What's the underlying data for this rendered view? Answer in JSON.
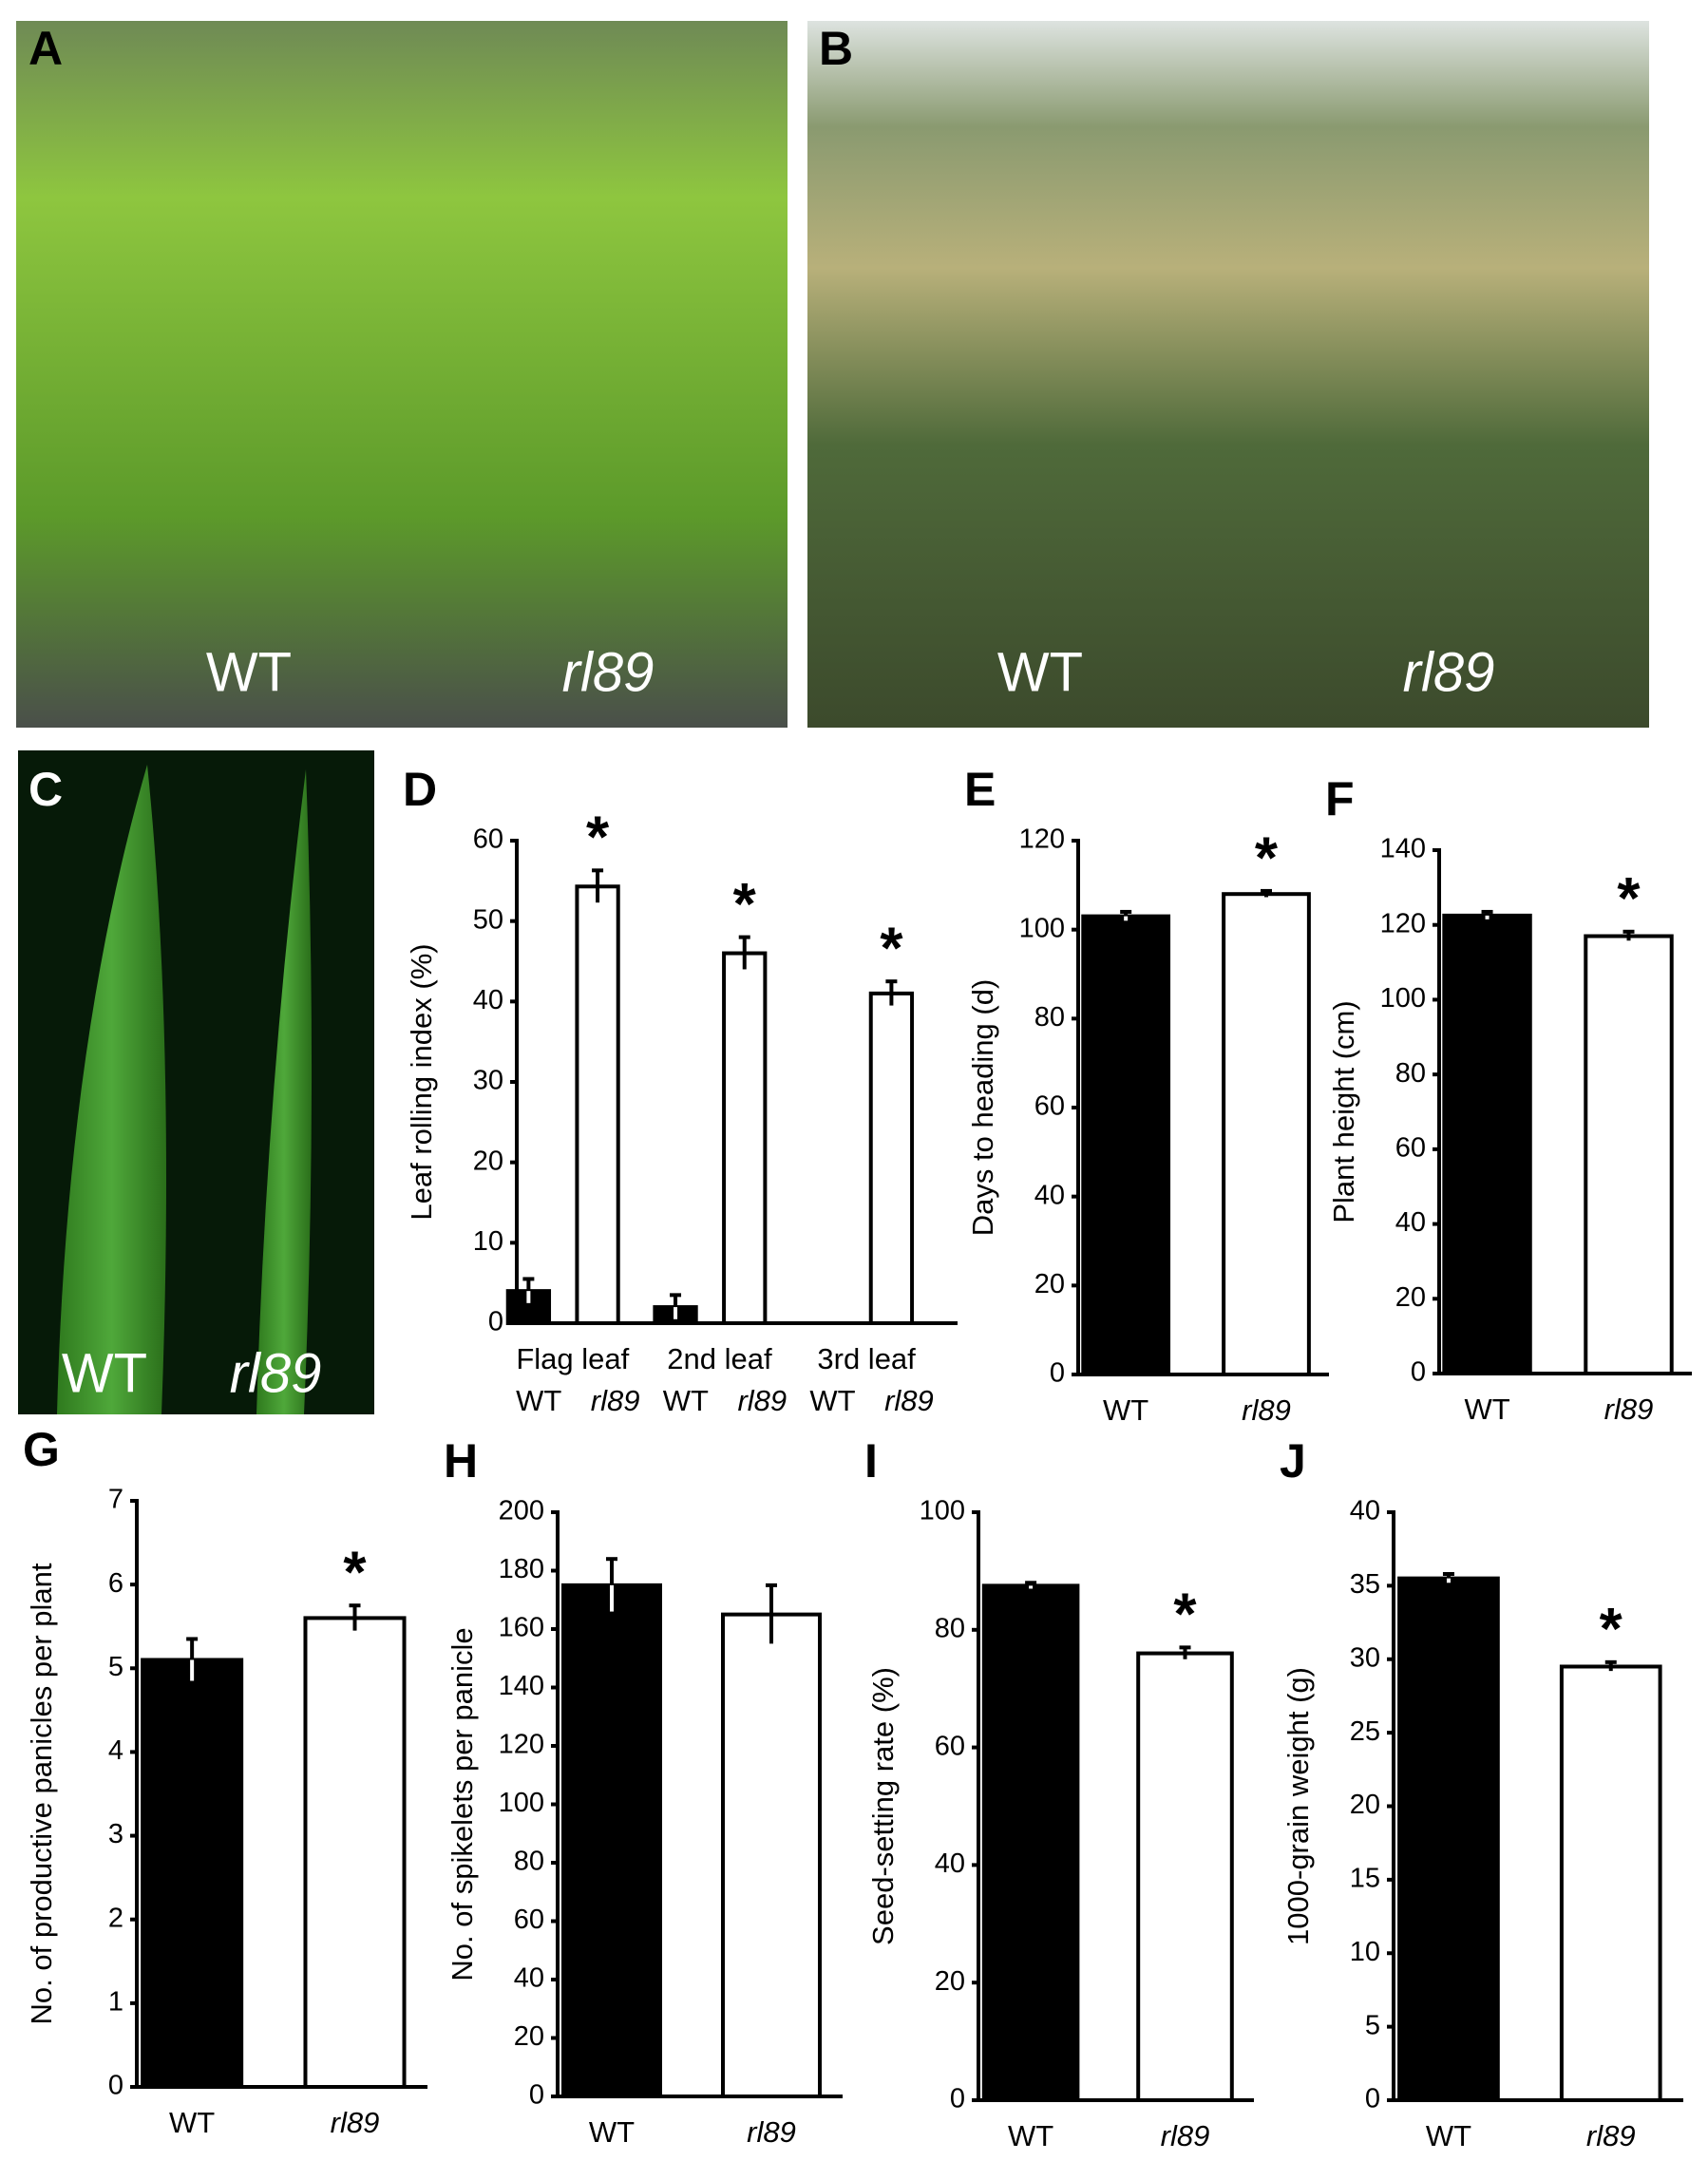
{
  "photos": [
    {
      "letter": "A",
      "labels": [
        "WT",
        "rl89"
      ]
    },
    {
      "letter": "B",
      "labels": [
        "WT",
        "rl89"
      ]
    },
    {
      "letter": "C",
      "labels": [
        "WT",
        "rl89"
      ]
    }
  ],
  "chart_data": [
    {
      "type": "grouped-bar",
      "letter": "D",
      "ylabel": "Leaf rolling index (%)",
      "categories": [
        "Flag leaf",
        "2nd leaf",
        "3rd leaf"
      ],
      "series": [
        {
          "name": "WT",
          "color": "#000000",
          "values": [
            4,
            2,
            0
          ],
          "errors": [
            1.5,
            1.5,
            0
          ]
        },
        {
          "name": "rl89",
          "color": "#ffffff",
          "values": [
            54.3,
            46,
            41
          ],
          "errors": [
            2,
            2,
            1.5
          ],
          "marks": [
            "*",
            "*",
            "*"
          ]
        }
      ],
      "ylim": [
        0,
        60
      ],
      "yticks": [
        0,
        10,
        20,
        30,
        40,
        50,
        60
      ]
    },
    {
      "type": "bar",
      "letter": "E",
      "ylabel": "Days to heading (d)",
      "categories": [
        "WT",
        "rl89"
      ],
      "colors": [
        "#000000",
        "#ffffff"
      ],
      "values": [
        103,
        108
      ],
      "errors": [
        1,
        0.7
      ],
      "annotations": [
        {
          "index": 1,
          "text": "*"
        }
      ],
      "ylim": [
        0,
        120
      ],
      "yticks": [
        0,
        20,
        40,
        60,
        80,
        100,
        120
      ]
    },
    {
      "type": "bar",
      "letter": "F",
      "ylabel": "Plant height (cm)",
      "categories": [
        "WT",
        "rl89"
      ],
      "colors": [
        "#000000",
        "#ffffff"
      ],
      "values": [
        122.5,
        117
      ],
      "errors": [
        1,
        1.2
      ],
      "annotations": [
        {
          "index": 1,
          "text": "*"
        }
      ],
      "ylim": [
        0,
        140
      ],
      "yticks": [
        0,
        20,
        40,
        60,
        80,
        100,
        120,
        140
      ]
    },
    {
      "type": "bar",
      "letter": "G",
      "ylabel": "No. of productive panicles per plant",
      "categories": [
        "WT",
        "rl89"
      ],
      "colors": [
        "#000000",
        "#ffffff"
      ],
      "values": [
        5.1,
        5.6
      ],
      "errors": [
        0.25,
        0.15
      ],
      "annotations": [
        {
          "index": 1,
          "text": "*"
        }
      ],
      "ylim": [
        0,
        7
      ],
      "yticks": [
        0,
        1,
        2,
        3,
        4,
        5,
        6,
        7
      ]
    },
    {
      "type": "bar",
      "letter": "H",
      "ylabel": "No. of spikelets per panicle",
      "categories": [
        "WT",
        "rl89"
      ],
      "colors": [
        "#000000",
        "#ffffff"
      ],
      "values": [
        175,
        165
      ],
      "errors": [
        9,
        10
      ],
      "ylim": [
        0,
        200
      ],
      "yticks": [
        0,
        20,
        40,
        60,
        80,
        100,
        120,
        140,
        160,
        180,
        200
      ]
    },
    {
      "type": "bar",
      "letter": "I",
      "ylabel": "Seed-setting rate (%)",
      "categories": [
        "WT",
        "rl89"
      ],
      "colors": [
        "#000000",
        "#ffffff"
      ],
      "values": [
        87.5,
        76
      ],
      "errors": [
        0.5,
        1
      ],
      "annotations": [
        {
          "index": 1,
          "text": "*"
        }
      ],
      "ylim": [
        0,
        100
      ],
      "yticks": [
        0,
        20,
        40,
        60,
        80,
        100
      ]
    },
    {
      "type": "bar",
      "letter": "J",
      "ylabel": "1000-grain weight (g)",
      "categories": [
        "WT",
        "rl89"
      ],
      "colors": [
        "#000000",
        "#ffffff"
      ],
      "values": [
        35.5,
        29.5
      ],
      "errors": [
        0.3,
        0.3
      ],
      "annotations": [
        {
          "index": 1,
          "text": "*"
        }
      ],
      "ylim": [
        0,
        40
      ],
      "yticks": [
        0,
        5,
        10,
        15,
        20,
        25,
        30,
        35,
        40
      ]
    }
  ]
}
